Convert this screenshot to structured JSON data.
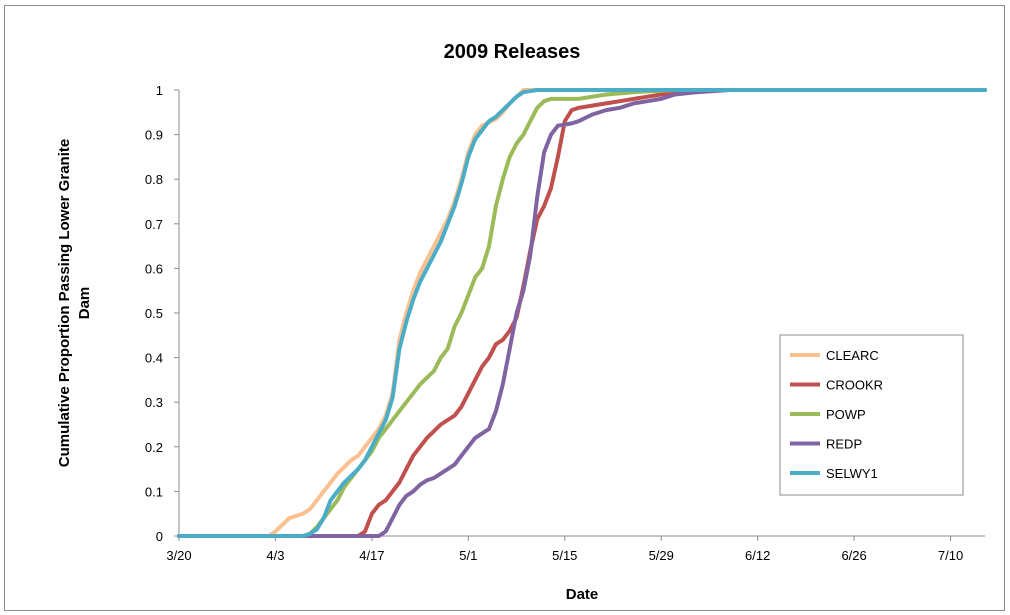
{
  "chart_data": {
    "type": "line",
    "title": "2009 Releases",
    "xlabel": "Date",
    "ylabel_lines": [
      "Cumulative Proportion Passing Lower Granite",
      "Dam"
    ],
    "x_ticks": [
      "3/20",
      "4/3",
      "4/17",
      "5/1",
      "5/15",
      "5/29",
      "6/12",
      "6/26",
      "7/10"
    ],
    "x_tick_days": [
      0,
      14,
      28,
      42,
      56,
      70,
      84,
      98,
      112
    ],
    "x_range_days": [
      0,
      117
    ],
    "y_ticks": [
      "0",
      "0.1",
      "0.2",
      "0.3",
      "0.4",
      "0.5",
      "0.6",
      "0.7",
      "0.8",
      "0.9",
      "1"
    ],
    "ylim": [
      0,
      1
    ],
    "grid": false,
    "legend_position": "right",
    "series": [
      {
        "name": "CLEARC",
        "color": "#FAC090",
        "points": [
          [
            0,
            0
          ],
          [
            13,
            0
          ],
          [
            14,
            0.01
          ],
          [
            16,
            0.04
          ],
          [
            18,
            0.05
          ],
          [
            19,
            0.06
          ],
          [
            20,
            0.08
          ],
          [
            21,
            0.1
          ],
          [
            22,
            0.12
          ],
          [
            23,
            0.14
          ],
          [
            24,
            0.155
          ],
          [
            25,
            0.17
          ],
          [
            26,
            0.18
          ],
          [
            27,
            0.2
          ],
          [
            28,
            0.22
          ],
          [
            29,
            0.24
          ],
          [
            30,
            0.27
          ],
          [
            31,
            0.32
          ],
          [
            32,
            0.44
          ],
          [
            33,
            0.5
          ],
          [
            34,
            0.55
          ],
          [
            35,
            0.59
          ],
          [
            36,
            0.62
          ],
          [
            37,
            0.65
          ],
          [
            38,
            0.68
          ],
          [
            39,
            0.71
          ],
          [
            40,
            0.75
          ],
          [
            41,
            0.8
          ],
          [
            42,
            0.86
          ],
          [
            43,
            0.9
          ],
          [
            44,
            0.92
          ],
          [
            46,
            0.935
          ],
          [
            47,
            0.95
          ],
          [
            48,
            0.97
          ],
          [
            49,
            0.985
          ],
          [
            50,
            1.0
          ],
          [
            117,
            1.0
          ]
        ]
      },
      {
        "name": "CROOKR",
        "color": "#C0504D",
        "points": [
          [
            0,
            0
          ],
          [
            26,
            0
          ],
          [
            27,
            0.01
          ],
          [
            28,
            0.05
          ],
          [
            29,
            0.07
          ],
          [
            30,
            0.08
          ],
          [
            31,
            0.1
          ],
          [
            32,
            0.12
          ],
          [
            33,
            0.15
          ],
          [
            34,
            0.18
          ],
          [
            35,
            0.2
          ],
          [
            36,
            0.22
          ],
          [
            37,
            0.235
          ],
          [
            38,
            0.25
          ],
          [
            39,
            0.26
          ],
          [
            40,
            0.27
          ],
          [
            41,
            0.29
          ],
          [
            42,
            0.32
          ],
          [
            43,
            0.35
          ],
          [
            44,
            0.38
          ],
          [
            45,
            0.4
          ],
          [
            46,
            0.43
          ],
          [
            47,
            0.44
          ],
          [
            48,
            0.46
          ],
          [
            49,
            0.49
          ],
          [
            50,
            0.56
          ],
          [
            51,
            0.64
          ],
          [
            52,
            0.71
          ],
          [
            53,
            0.74
          ],
          [
            54,
            0.78
          ],
          [
            55,
            0.85
          ],
          [
            56,
            0.93
          ],
          [
            57,
            0.955
          ],
          [
            58,
            0.96
          ],
          [
            60,
            0.965
          ],
          [
            62,
            0.97
          ],
          [
            64,
            0.975
          ],
          [
            66,
            0.98
          ],
          [
            68,
            0.985
          ],
          [
            70,
            0.99
          ],
          [
            72,
            0.995
          ],
          [
            76,
            1.0
          ],
          [
            117,
            1.0
          ]
        ]
      },
      {
        "name": "POWP",
        "color": "#9BBB59",
        "points": [
          [
            0,
            0
          ],
          [
            18,
            0
          ],
          [
            19,
            0.005
          ],
          [
            20,
            0.02
          ],
          [
            21,
            0.04
          ],
          [
            22,
            0.06
          ],
          [
            23,
            0.08
          ],
          [
            24,
            0.11
          ],
          [
            25,
            0.13
          ],
          [
            26,
            0.15
          ],
          [
            27,
            0.17
          ],
          [
            28,
            0.19
          ],
          [
            29,
            0.22
          ],
          [
            30,
            0.24
          ],
          [
            31,
            0.26
          ],
          [
            32,
            0.28
          ],
          [
            33,
            0.3
          ],
          [
            34,
            0.32
          ],
          [
            35,
            0.34
          ],
          [
            36,
            0.355
          ],
          [
            37,
            0.37
          ],
          [
            38,
            0.4
          ],
          [
            39,
            0.42
          ],
          [
            40,
            0.47
          ],
          [
            41,
            0.5
          ],
          [
            42,
            0.54
          ],
          [
            43,
            0.58
          ],
          [
            44,
            0.6
          ],
          [
            45,
            0.65
          ],
          [
            46,
            0.74
          ],
          [
            47,
            0.8
          ],
          [
            48,
            0.85
          ],
          [
            49,
            0.88
          ],
          [
            50,
            0.9
          ],
          [
            51,
            0.93
          ],
          [
            52,
            0.96
          ],
          [
            53,
            0.975
          ],
          [
            54,
            0.98
          ],
          [
            58,
            0.98
          ],
          [
            60,
            0.985
          ],
          [
            62,
            0.99
          ],
          [
            66,
            0.995
          ],
          [
            72,
            1.0
          ],
          [
            117,
            1.0
          ]
        ]
      },
      {
        "name": "REDP",
        "color": "#8064A2",
        "points": [
          [
            0,
            0
          ],
          [
            29,
            0
          ],
          [
            30,
            0.01
          ],
          [
            31,
            0.04
          ],
          [
            32,
            0.07
          ],
          [
            33,
            0.09
          ],
          [
            34,
            0.1
          ],
          [
            35,
            0.115
          ],
          [
            36,
            0.125
          ],
          [
            37,
            0.13
          ],
          [
            38,
            0.14
          ],
          [
            39,
            0.15
          ],
          [
            40,
            0.16
          ],
          [
            41,
            0.18
          ],
          [
            42,
            0.2
          ],
          [
            43,
            0.22
          ],
          [
            44,
            0.23
          ],
          [
            45,
            0.24
          ],
          [
            46,
            0.28
          ],
          [
            47,
            0.34
          ],
          [
            48,
            0.42
          ],
          [
            49,
            0.5
          ],
          [
            50,
            0.55
          ],
          [
            51,
            0.63
          ],
          [
            52,
            0.76
          ],
          [
            53,
            0.86
          ],
          [
            54,
            0.9
          ],
          [
            55,
            0.92
          ],
          [
            57,
            0.925
          ],
          [
            58,
            0.93
          ],
          [
            60,
            0.945
          ],
          [
            62,
            0.955
          ],
          [
            64,
            0.96
          ],
          [
            66,
            0.97
          ],
          [
            68,
            0.975
          ],
          [
            70,
            0.98
          ],
          [
            72,
            0.99
          ],
          [
            75,
            0.995
          ],
          [
            80,
            1.0
          ],
          [
            117,
            1.0
          ]
        ]
      },
      {
        "name": "SELWY1",
        "color": "#4BACC6",
        "points": [
          [
            0,
            0
          ],
          [
            18,
            0
          ],
          [
            19,
            0.005
          ],
          [
            20,
            0.015
          ],
          [
            21,
            0.04
          ],
          [
            22,
            0.08
          ],
          [
            23,
            0.1
          ],
          [
            24,
            0.12
          ],
          [
            25,
            0.135
          ],
          [
            26,
            0.15
          ],
          [
            27,
            0.17
          ],
          [
            28,
            0.2
          ],
          [
            29,
            0.23
          ],
          [
            30,
            0.26
          ],
          [
            31,
            0.31
          ],
          [
            32,
            0.42
          ],
          [
            33,
            0.48
          ],
          [
            34,
            0.53
          ],
          [
            35,
            0.57
          ],
          [
            36,
            0.6
          ],
          [
            37,
            0.63
          ],
          [
            38,
            0.66
          ],
          [
            39,
            0.7
          ],
          [
            40,
            0.74
          ],
          [
            41,
            0.79
          ],
          [
            42,
            0.85
          ],
          [
            43,
            0.89
          ],
          [
            44,
            0.91
          ],
          [
            45,
            0.93
          ],
          [
            46,
            0.94
          ],
          [
            47,
            0.955
          ],
          [
            48,
            0.97
          ],
          [
            49,
            0.985
          ],
          [
            50,
            0.995
          ],
          [
            52,
            1.0
          ],
          [
            117,
            1.0
          ]
        ]
      }
    ]
  }
}
